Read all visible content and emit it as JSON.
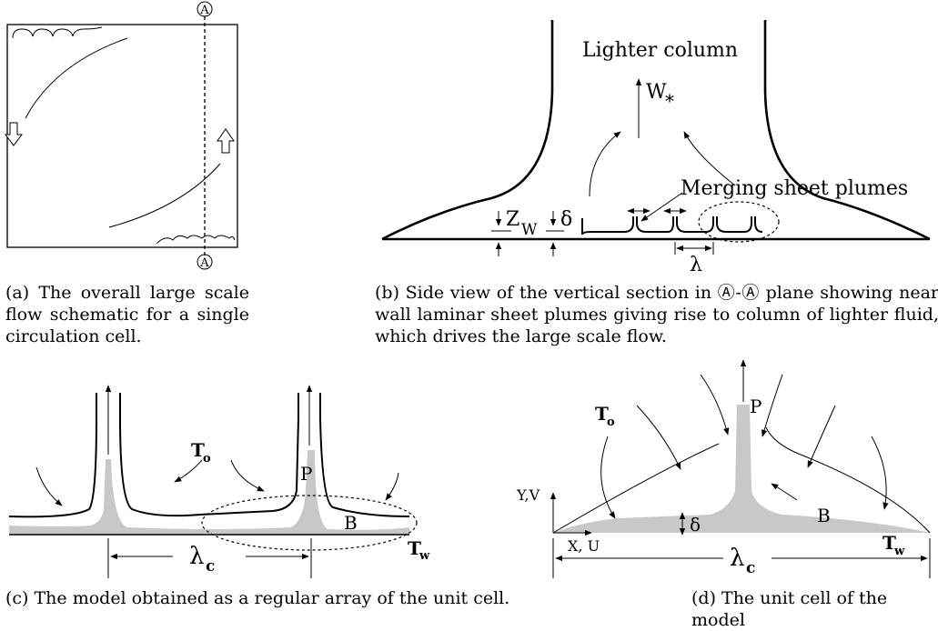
{
  "panel_a": {
    "caption": "(a) The overall large scale flow schematic for a single circulation cell.",
    "section_marker_top": "A",
    "section_marker_bottom": "A"
  },
  "panel_b": {
    "caption": "(b) Side view of the vertical section in Ⓐ-Ⓐ plane showing near wall laminar sheet plumes giving rise to column of lighter fluid, which drives the large scale flow.",
    "column_label": "Lighter column",
    "velocity_label": "W",
    "velocity_sub": "*",
    "plumes_label": "Merging sheet plumes",
    "zw_label": "Z",
    "zw_sub": "W",
    "delta_label": "δ",
    "lambda_label": "λ"
  },
  "panel_c": {
    "caption": "(c) The model obtained as a regular array of the unit cell.",
    "t0_label": "T",
    "t0_sub": "o",
    "tw_label": "T",
    "tw_sub": "w",
    "p_label": "P",
    "b_label": "B",
    "lambda_label": "λ",
    "lambda_sub": "c"
  },
  "panel_d": {
    "caption": "(d) The unit cell of the model",
    "t0_label": "T",
    "t0_sub": "o",
    "tw_label": "T",
    "tw_sub": "w",
    "p_label": "P",
    "b_label": "B",
    "delta_label": "δ",
    "yv_label": "Y,V",
    "xu_label": "X, U",
    "lambda_label": "λ",
    "lambda_sub": "c"
  }
}
